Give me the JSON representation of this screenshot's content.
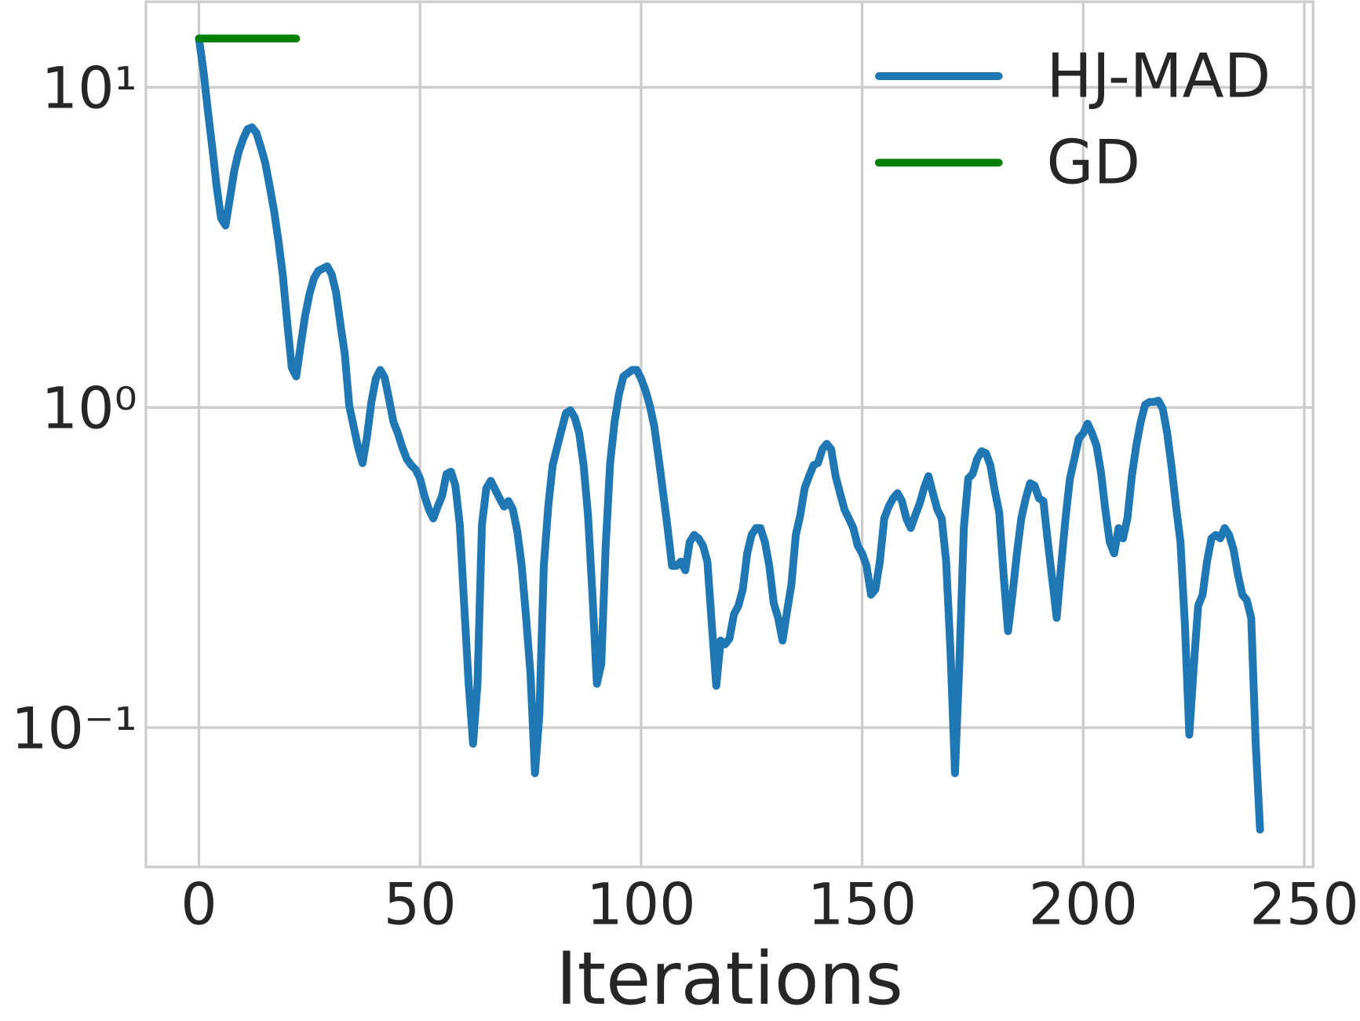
{
  "chart_data": {
    "type": "line",
    "xlabel": "Iterations",
    "log_y": true,
    "grid": true,
    "legend": "upper right",
    "xlim": [
      -12,
      252
    ],
    "xticks": [
      0,
      50,
      100,
      150,
      200,
      250
    ],
    "ylim": [
      0.0367,
      18.5
    ],
    "yticks": [
      {
        "value": 0.1,
        "label": "10⁻¹"
      },
      {
        "value": 1,
        "label": "10⁰"
      },
      {
        "value": 10,
        "label": "10¹"
      }
    ],
    "series": [
      {
        "name": "HJ-MAD",
        "color": "#1f77b4",
        "x": [
          0,
          1,
          2,
          3,
          4,
          5,
          6,
          7,
          8,
          9,
          10,
          11,
          12,
          13,
          14,
          15,
          16,
          17,
          18,
          19,
          20,
          21,
          22,
          23,
          24,
          25,
          26,
          27,
          29,
          30,
          31,
          32,
          33,
          34,
          36,
          37,
          38,
          39,
          40,
          41,
          42,
          43,
          44,
          45,
          46,
          47,
          48,
          49,
          50,
          51,
          52,
          53,
          54,
          55,
          56,
          57,
          58,
          59,
          60,
          61,
          62,
          63,
          64,
          65,
          66,
          68,
          69,
          70,
          71,
          72,
          73,
          74,
          75,
          76,
          77,
          78,
          79,
          80,
          81,
          82,
          83,
          84,
          85,
          86,
          87,
          88,
          89,
          90,
          91,
          92,
          93,
          94,
          95,
          96,
          98,
          99,
          100,
          101,
          102,
          103,
          104,
          105,
          106,
          107,
          108,
          109,
          110,
          111,
          112,
          113,
          114,
          115,
          116,
          117,
          118,
          119,
          120,
          121,
          122,
          123,
          124,
          125,
          126,
          127,
          128,
          129,
          130,
          131,
          132,
          133,
          134,
          135,
          136,
          137,
          138,
          139,
          140,
          141,
          142,
          143,
          144,
          145,
          146,
          147,
          148,
          149,
          150,
          151,
          152,
          153,
          154,
          155,
          156,
          157,
          158,
          159,
          160,
          161,
          162,
          163,
          164,
          165,
          166,
          167,
          168,
          169,
          170,
          171,
          172,
          173,
          174,
          175,
          176,
          177,
          178,
          179,
          180,
          181,
          182,
          183,
          184,
          185,
          186,
          187,
          188,
          189,
          190,
          191,
          192,
          193,
          194,
          195,
          196,
          197,
          198,
          199,
          200,
          201,
          202,
          203,
          204,
          205,
          206,
          207,
          208,
          209,
          210,
          211,
          212,
          213,
          214,
          215,
          216,
          217,
          218,
          219,
          220,
          221,
          222,
          223,
          224,
          225,
          226,
          227,
          228,
          229,
          230,
          231,
          232,
          233,
          234,
          235,
          236,
          237,
          238,
          239,
          240
        ],
        "values": [
          14.2,
          11.3,
          8.5,
          6.5,
          4.9,
          3.9,
          3.7,
          4.5,
          5.5,
          6.3,
          6.9,
          7.4,
          7.5,
          7.2,
          6.5,
          5.8,
          4.9,
          4.1,
          3.3,
          2.56,
          1.82,
          1.33,
          1.25,
          1.56,
          1.93,
          2.26,
          2.53,
          2.67,
          2.76,
          2.61,
          2.29,
          1.82,
          1.46,
          1.01,
          0.75,
          0.67,
          0.81,
          1.04,
          1.23,
          1.31,
          1.24,
          1.06,
          0.9,
          0.83,
          0.75,
          0.69,
          0.66,
          0.64,
          0.6,
          0.53,
          0.48,
          0.45,
          0.49,
          0.53,
          0.62,
          0.63,
          0.57,
          0.43,
          0.24,
          0.137,
          0.089,
          0.137,
          0.43,
          0.56,
          0.59,
          0.52,
          0.49,
          0.51,
          0.48,
          0.41,
          0.32,
          0.22,
          0.146,
          0.072,
          0.11,
          0.32,
          0.49,
          0.66,
          0.75,
          0.85,
          0.96,
          0.98,
          0.93,
          0.83,
          0.66,
          0.46,
          0.26,
          0.137,
          0.158,
          0.37,
          0.67,
          0.9,
          1.1,
          1.25,
          1.31,
          1.31,
          1.23,
          1.13,
          1.01,
          0.87,
          0.69,
          0.54,
          0.42,
          0.32,
          0.32,
          0.33,
          0.31,
          0.38,
          0.4,
          0.39,
          0.37,
          0.33,
          0.21,
          0.135,
          0.187,
          0.182,
          0.19,
          0.226,
          0.24,
          0.27,
          0.35,
          0.4,
          0.42,
          0.42,
          0.38,
          0.32,
          0.245,
          0.22,
          0.187,
          0.23,
          0.28,
          0.4,
          0.46,
          0.56,
          0.61,
          0.66,
          0.67,
          0.74,
          0.77,
          0.74,
          0.61,
          0.54,
          0.48,
          0.45,
          0.42,
          0.37,
          0.35,
          0.32,
          0.26,
          0.27,
          0.33,
          0.45,
          0.49,
          0.52,
          0.54,
          0.51,
          0.45,
          0.42,
          0.46,
          0.5,
          0.56,
          0.61,
          0.54,
          0.48,
          0.45,
          0.33,
          0.171,
          0.072,
          0.16,
          0.42,
          0.6,
          0.62,
          0.69,
          0.73,
          0.72,
          0.66,
          0.55,
          0.47,
          0.3,
          0.2,
          0.26,
          0.35,
          0.45,
          0.52,
          0.58,
          0.57,
          0.52,
          0.51,
          0.38,
          0.29,
          0.22,
          0.32,
          0.45,
          0.6,
          0.69,
          0.8,
          0.83,
          0.89,
          0.83,
          0.76,
          0.63,
          0.48,
          0.38,
          0.35,
          0.42,
          0.39,
          0.45,
          0.61,
          0.76,
          0.9,
          1.02,
          1.04,
          1.04,
          1.05,
          0.99,
          0.83,
          0.65,
          0.49,
          0.38,
          0.21,
          0.095,
          0.155,
          0.24,
          0.26,
          0.33,
          0.39,
          0.4,
          0.39,
          0.42,
          0.4,
          0.36,
          0.3,
          0.26,
          0.25,
          0.22,
          0.09,
          0.048
        ]
      },
      {
        "name": "GD",
        "color": "#008000",
        "x": [
          0,
          22
        ],
        "values": [
          14.2,
          14.2
        ]
      }
    ]
  }
}
